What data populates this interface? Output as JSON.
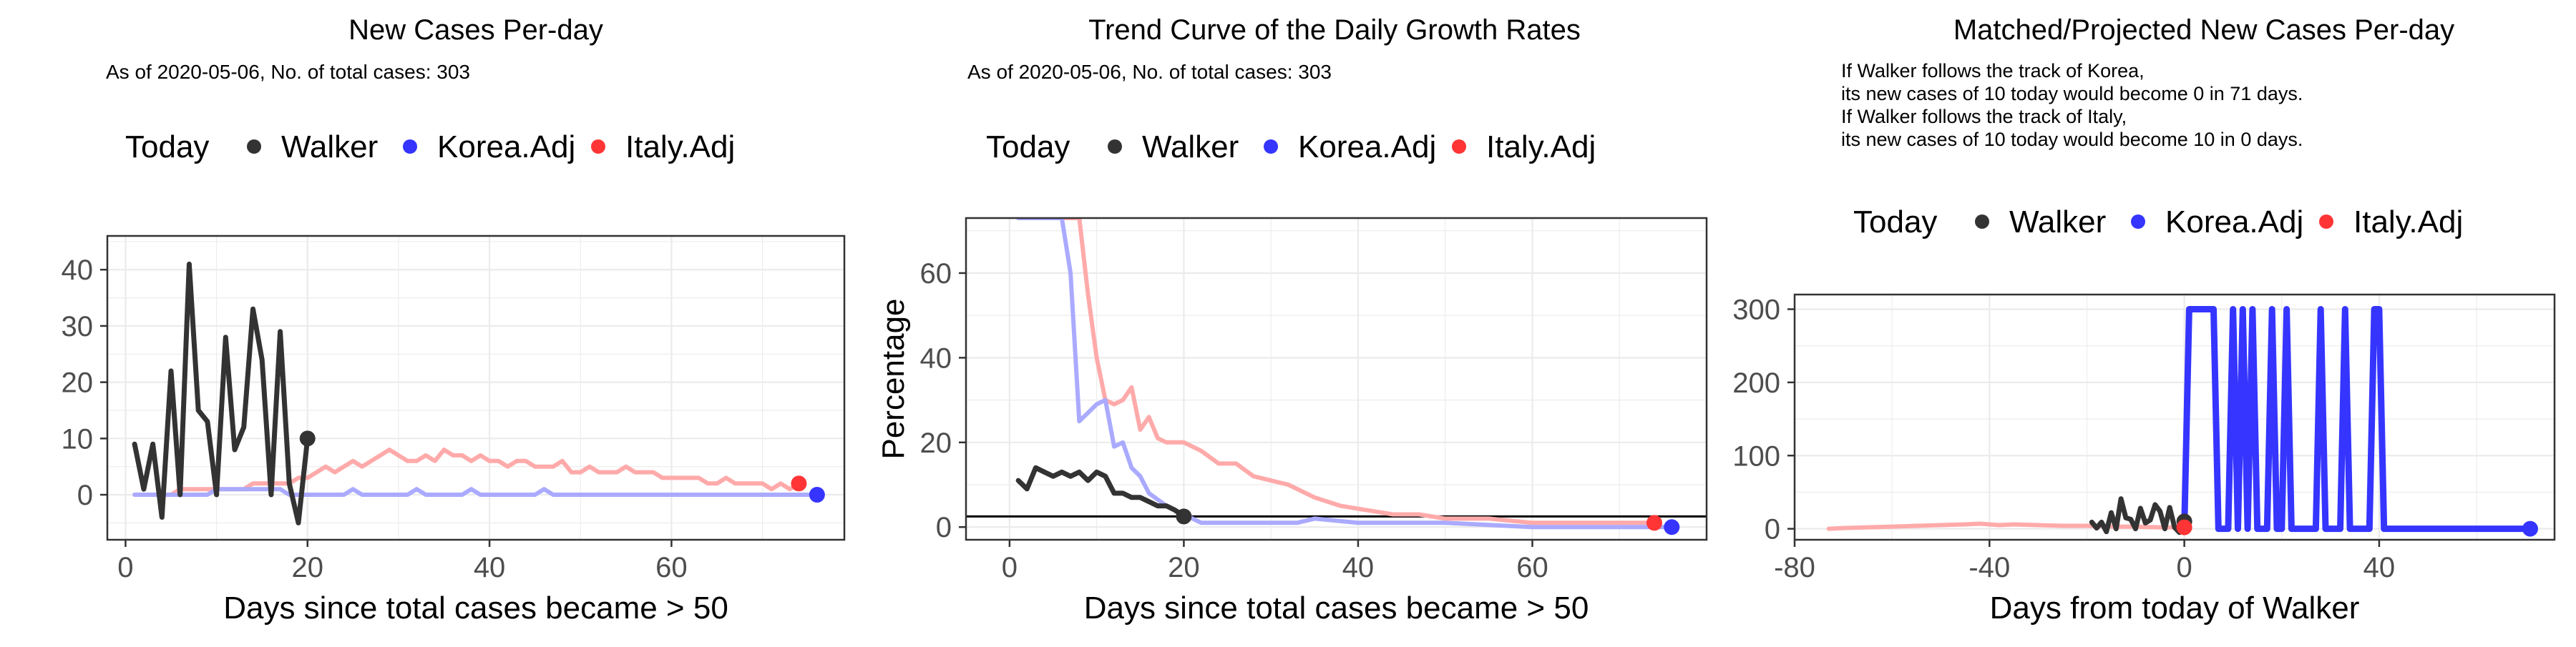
{
  "colors": {
    "walker": "#333333",
    "korea": "#3535ff",
    "italy": "#ff3535",
    "korea_light": "#aaaaff",
    "italy_light": "#ffaaaa",
    "grid": "#ebebeb",
    "frame": "#333333",
    "tick_label": "#4d4d4d",
    "text": "#000000"
  },
  "chart_data": [
    {
      "type": "line",
      "title": "New Cases Per-day",
      "subtitle": "As of 2020-05-06, No. of total cases: 303",
      "notes": [],
      "xlabel": "Days since total cases became > 50",
      "ylabel": "",
      "xlim": [
        -2,
        79
      ],
      "ylim": [
        -8,
        46
      ],
      "xticks": [
        0,
        20,
        40,
        60
      ],
      "yticks": [
        0,
        10,
        20,
        30,
        40
      ],
      "grid": true,
      "legend": {
        "title": "Today",
        "position": "top",
        "items": [
          {
            "label": "Walker",
            "color_key": "walker"
          },
          {
            "label": "Korea.Adj",
            "color_key": "korea"
          },
          {
            "label": "Italy.Adj",
            "color_key": "italy"
          }
        ]
      },
      "series": [
        {
          "name": "Italy.Adj",
          "color_key": "italy_light",
          "x": [
            1,
            2,
            3,
            4,
            5,
            6,
            7,
            8,
            9,
            10,
            11,
            12,
            13,
            14,
            15,
            16,
            17,
            18,
            19,
            20,
            21,
            22,
            23,
            24,
            25,
            26,
            27,
            28,
            29,
            30,
            31,
            32,
            33,
            34,
            35,
            36,
            37,
            38,
            39,
            40,
            41,
            42,
            43,
            44,
            45,
            46,
            47,
            48,
            49,
            50,
            51,
            52,
            53,
            54,
            55,
            56,
            57,
            58,
            59,
            60,
            61,
            62,
            63,
            64,
            65,
            66,
            67,
            68,
            69,
            70,
            71,
            72,
            73,
            74
          ],
          "y": [
            0,
            0,
            0,
            0,
            0,
            1,
            1,
            1,
            1,
            1,
            1,
            1,
            1,
            2,
            2,
            2,
            2,
            2,
            3,
            3,
            4,
            5,
            4,
            5,
            6,
            5,
            6,
            7,
            8,
            7,
            6,
            6,
            7,
            6,
            8,
            7,
            7,
            6,
            7,
            6,
            6,
            5,
            6,
            6,
            5,
            5,
            5,
            6,
            4,
            4,
            5,
            4,
            4,
            4,
            5,
            4,
            4,
            4,
            3,
            3,
            3,
            3,
            3,
            2,
            2,
            3,
            2,
            2,
            2,
            2,
            1,
            2,
            1,
            2
          ]
        },
        {
          "name": "Korea.Adj",
          "color_key": "korea_light",
          "x": [
            1,
            2,
            3,
            4,
            5,
            6,
            7,
            8,
            9,
            10,
            11,
            12,
            13,
            14,
            15,
            16,
            17,
            18,
            19,
            20,
            21,
            22,
            23,
            24,
            25,
            26,
            27,
            28,
            29,
            30,
            31,
            32,
            33,
            34,
            35,
            36,
            37,
            38,
            39,
            40,
            41,
            42,
            43,
            44,
            45,
            46,
            47,
            48,
            49,
            50,
            51,
            52,
            53,
            54,
            55,
            56,
            57,
            58,
            59,
            60,
            61,
            62,
            63,
            64,
            65,
            66,
            67,
            68,
            69,
            70,
            71,
            72,
            73,
            74,
            75,
            76
          ],
          "y": [
            0,
            0,
            0,
            0,
            0,
            0,
            0,
            0,
            0,
            1,
            1,
            1,
            1,
            1,
            1,
            1,
            1,
            0,
            0,
            0,
            0,
            0,
            0,
            0,
            1,
            0,
            0,
            0,
            0,
            0,
            0,
            1,
            0,
            0,
            0,
            0,
            0,
            1,
            0,
            0,
            0,
            0,
            0,
            0,
            0,
            1,
            0,
            0,
            0,
            0,
            0,
            0,
            0,
            0,
            0,
            0,
            0,
            0,
            0,
            0,
            0,
            0,
            0,
            0,
            0,
            0,
            0,
            0,
            0,
            0,
            0,
            0,
            0,
            0,
            0,
            0
          ]
        },
        {
          "name": "Walker",
          "color_key": "walker",
          "x": [
            1,
            2,
            3,
            4,
            5,
            6,
            7,
            8,
            9,
            10,
            11,
            12,
            13,
            14,
            15,
            16,
            17,
            18,
            19,
            20
          ],
          "y": [
            9,
            1,
            9,
            -4,
            22,
            0,
            41,
            15,
            13,
            0,
            28,
            8,
            12,
            33,
            24,
            0,
            29,
            2,
            -5,
            10
          ]
        }
      ],
      "today_points": [
        {
          "name": "Walker",
          "x": 20,
          "y": 10,
          "color_key": "walker"
        },
        {
          "name": "Italy.Adj",
          "x": 74,
          "y": 2,
          "color_key": "italy"
        },
        {
          "name": "Korea.Adj",
          "x": 76,
          "y": 0,
          "color_key": "korea"
        }
      ],
      "hline": null
    },
    {
      "type": "line",
      "title": "Trend Curve of the Daily Growth Rates",
      "subtitle": "As of 2020-05-06, No. of total cases: 303",
      "notes": [],
      "xlabel": "Days since total cases became > 50",
      "ylabel": "Percentage",
      "xlim": [
        -5,
        80
      ],
      "ylim": [
        -3,
        73
      ],
      "xticks": [
        0,
        20,
        40,
        60
      ],
      "yticks": [
        0,
        20,
        40,
        60
      ],
      "grid": true,
      "legend": {
        "title": "Today",
        "position": "top",
        "items": [
          {
            "label": "Walker",
            "color_key": "walker"
          },
          {
            "label": "Korea.Adj",
            "color_key": "korea"
          },
          {
            "label": "Italy.Adj",
            "color_key": "italy"
          }
        ]
      },
      "series": [
        {
          "name": "Italy.Adj",
          "color_key": "italy_light",
          "x": [
            1,
            5,
            8,
            9,
            10,
            11,
            12,
            13,
            14,
            15,
            16,
            17,
            18,
            20,
            22,
            24,
            26,
            28,
            30,
            32,
            35,
            38,
            41,
            44,
            47,
            50,
            55,
            60,
            65,
            70,
            74
          ],
          "y": [
            73,
            73,
            73,
            55,
            40,
            30,
            29,
            30,
            33,
            23,
            26,
            21,
            20,
            20,
            18,
            15,
            15,
            12,
            11,
            10,
            7,
            5,
            4,
            3,
            3,
            2,
            2,
            1,
            1,
            1,
            1
          ]
        },
        {
          "name": "Korea.Adj",
          "color_key": "korea_light",
          "x": [
            1,
            6,
            7,
            8,
            9,
            10,
            11,
            12,
            13,
            14,
            15,
            16,
            18,
            20,
            22,
            25,
            30,
            33,
            35,
            40,
            45,
            50,
            60,
            70,
            76
          ],
          "y": [
            73,
            73,
            60,
            25,
            27,
            29,
            30,
            19,
            20,
            14,
            12,
            8,
            5,
            3,
            1,
            1,
            1,
            1,
            2,
            1,
            1,
            1,
            0,
            0,
            0
          ]
        },
        {
          "name": "Walker",
          "color_key": "walker",
          "x": [
            1,
            2,
            3,
            4,
            5,
            6,
            7,
            8,
            9,
            10,
            11,
            12,
            13,
            14,
            15,
            16,
            17,
            18,
            19,
            20
          ],
          "y": [
            11,
            9,
            14,
            13,
            12,
            13,
            12,
            13,
            11,
            13,
            12,
            8,
            8,
            7,
            7,
            6,
            5,
            5,
            4,
            2.5
          ]
        }
      ],
      "today_points": [
        {
          "name": "Walker",
          "x": 20,
          "y": 2.5,
          "color_key": "walker"
        },
        {
          "name": "Italy.Adj",
          "x": 74,
          "y": 1,
          "color_key": "italy"
        },
        {
          "name": "Korea.Adj",
          "x": 76,
          "y": 0,
          "color_key": "korea"
        }
      ],
      "hline": 2.5
    },
    {
      "type": "line",
      "title": "Matched/Projected New Cases Per-day",
      "subtitle": "",
      "notes": [
        "If Walker follows the track of Korea,",
        "its new cases of 10 today would become 0 in 71 days.",
        "If Walker follows the track of Italy,",
        "its new cases of 10 today would become 10 in 0 days."
      ],
      "xlabel": "Days from today of Walker",
      "ylabel": "",
      "xlim": [
        -80,
        76
      ],
      "ylim": [
        -15,
        320
      ],
      "xticks": [
        -80,
        -40,
        0,
        40
      ],
      "yticks": [
        0,
        100,
        200,
        300
      ],
      "grid": true,
      "legend": {
        "title": "Today",
        "position": "top",
        "items": [
          {
            "label": "Walker",
            "color_key": "walker"
          },
          {
            "label": "Korea.Adj",
            "color_key": "korea"
          },
          {
            "label": "Italy.Adj",
            "color_key": "italy"
          }
        ]
      },
      "series": [
        {
          "name": "Italy.Adj",
          "color_key": "italy_light",
          "x": [
            -73,
            -70,
            -65,
            -60,
            -55,
            -50,
            -45,
            -42,
            -40,
            -38,
            -35,
            -30,
            -25,
            -20,
            -15,
            -10,
            -5,
            0
          ],
          "y": [
            0,
            1,
            2,
            3,
            4,
            5,
            6,
            7,
            6,
            5,
            6,
            5,
            4,
            4,
            3,
            3,
            2,
            2
          ]
        },
        {
          "name": "Walker",
          "color_key": "walker",
          "x": [
            -19,
            -18,
            -17,
            -16,
            -15,
            -14,
            -13,
            -12,
            -11,
            -10,
            -9,
            -8,
            -7,
            -6,
            -5,
            -4,
            -3,
            -2,
            -1,
            0
          ],
          "y": [
            9,
            1,
            9,
            -4,
            22,
            0,
            41,
            15,
            13,
            0,
            28,
            8,
            12,
            33,
            24,
            0,
            29,
            2,
            -5,
            10
          ]
        },
        {
          "name": "Korea.Adj",
          "color_key": "korea",
          "x": [
            0,
            1,
            2,
            3,
            4,
            5,
            6,
            7,
            8,
            9,
            10,
            11,
            12,
            13,
            14,
            15,
            16,
            17,
            18,
            19,
            20,
            21,
            22,
            23,
            24,
            25,
            26,
            27,
            28,
            29,
            30,
            31,
            32,
            33,
            34,
            35,
            36,
            37,
            38,
            39,
            40,
            41,
            42,
            43,
            44,
            45,
            46,
            47,
            48,
            49,
            50,
            51,
            52,
            53,
            54,
            55,
            56,
            57,
            58,
            59,
            60,
            61,
            62,
            63,
            64,
            65,
            66,
            67,
            68,
            69,
            70,
            71
          ],
          "y": [
            0,
            300,
            300,
            300,
            300,
            300,
            300,
            0,
            0,
            0,
            300,
            0,
            300,
            0,
            300,
            0,
            0,
            0,
            300,
            0,
            0,
            300,
            0,
            0,
            0,
            0,
            0,
            0,
            300,
            0,
            0,
            0,
            0,
            300,
            0,
            0,
            0,
            0,
            0,
            300,
            300,
            0,
            0,
            0,
            0,
            0,
            0,
            0,
            0,
            0,
            0,
            0,
            0,
            0,
            0,
            0,
            0,
            0,
            0,
            0,
            0,
            0,
            0,
            0,
            0,
            0,
            0,
            0,
            0,
            0,
            0,
            0
          ]
        }
      ],
      "today_points": [
        {
          "name": "Walker",
          "x": 0,
          "y": 10,
          "color_key": "walker"
        },
        {
          "name": "Italy.Adj",
          "x": 0,
          "y": 2,
          "color_key": "italy"
        },
        {
          "name": "Korea.Adj",
          "x": 71,
          "y": 0,
          "color_key": "korea"
        }
      ],
      "hline": null
    }
  ]
}
